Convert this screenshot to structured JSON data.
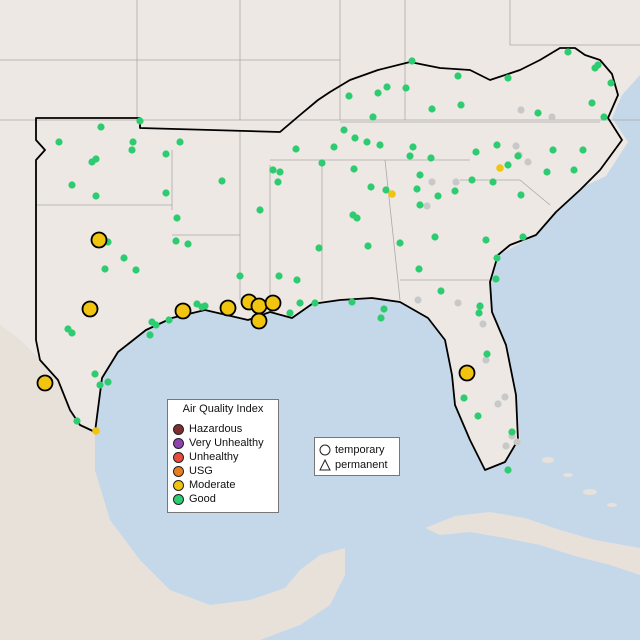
{
  "legend": {
    "title": "Air Quality Index",
    "items": [
      {
        "label": "Hazardous",
        "color": "#7e2f2f"
      },
      {
        "label": "Very Unhealthy",
        "color": "#8e44ad"
      },
      {
        "label": "Unhealthy",
        "color": "#e74c3c"
      },
      {
        "label": "USG",
        "color": "#e67e22"
      },
      {
        "label": "Moderate",
        "color": "#f1c40f"
      },
      {
        "label": "Good",
        "color": "#2ecc71"
      }
    ]
  },
  "shape_legend": {
    "items": [
      {
        "label": "temporary",
        "icon": "circle-icon"
      },
      {
        "label": "permanent",
        "icon": "triangle-icon"
      }
    ]
  },
  "colors": {
    "land": "#ede8e3",
    "water": "#c5d8ea",
    "no_data": "#c8c8c8",
    "region_outline": "#000000",
    "state_border": "#a9a9a9"
  }
}
